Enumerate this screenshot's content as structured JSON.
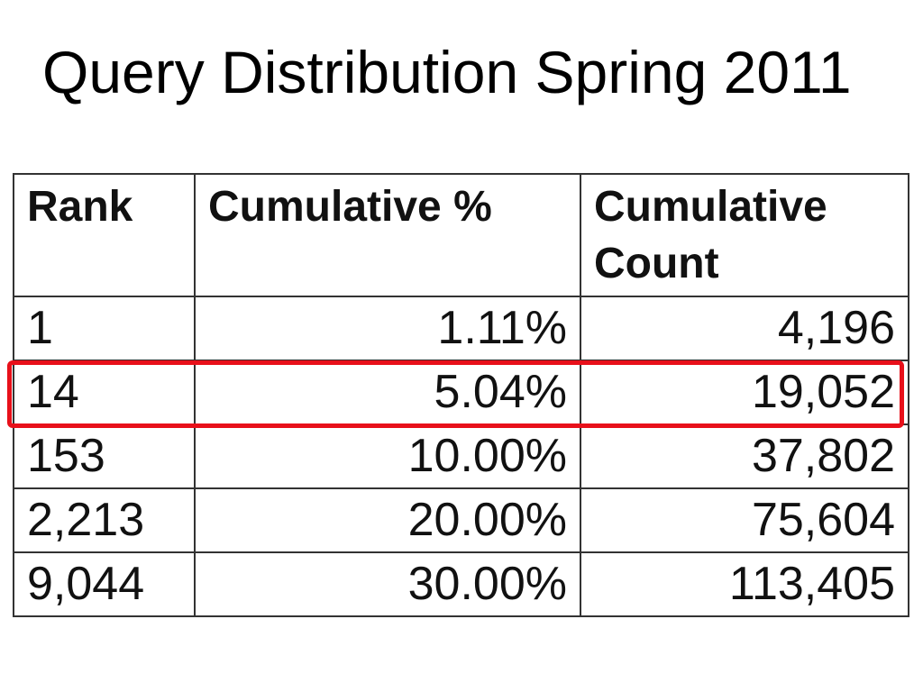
{
  "slide": {
    "title": "Query Distribution Spring 2011"
  },
  "table": {
    "headers": {
      "rank": "Rank",
      "cumulative_pct": "Cumulative %",
      "cumulative_count_line1": "Cumulative",
      "cumulative_count_line2": "Count"
    },
    "rows": [
      {
        "rank": "1",
        "cumulative_pct": "1.11%",
        "cumulative_count": "4,196"
      },
      {
        "rank": "14",
        "cumulative_pct": "5.04%",
        "cumulative_count": "19,052"
      },
      {
        "rank": "153",
        "cumulative_pct": "10.00%",
        "cumulative_count": "37,802"
      },
      {
        "rank": "2,213",
        "cumulative_pct": "20.00%",
        "cumulative_count": "75,604"
      },
      {
        "rank": "9,044",
        "cumulative_pct": "30.00%",
        "cumulative_count": "113,405"
      }
    ],
    "highlighted_row_index": 1,
    "highlight_color": "#e8101a",
    "border_color": "#333333"
  }
}
